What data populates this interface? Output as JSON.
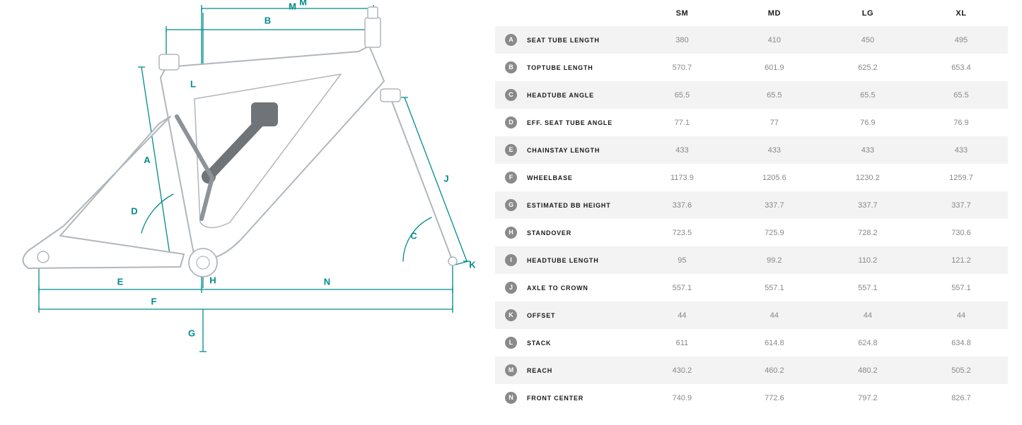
{
  "diagram": {
    "stroke_frame": "#b0b6bb",
    "stroke_dim": "#008b8b",
    "stroke_width_frame": 2,
    "stroke_width_dim": 1.3,
    "labels": [
      "A",
      "B",
      "C",
      "D",
      "E",
      "F",
      "G",
      "H",
      "J",
      "K",
      "L",
      "M",
      "N"
    ],
    "label_color": "#008b8b",
    "label_fontsize": 13
  },
  "table": {
    "sizes": [
      "SM",
      "MD",
      "LG",
      "XL"
    ],
    "rows": [
      {
        "key": "A",
        "label": "SEAT TUBE LENGTH",
        "vals": [
          "380",
          "410",
          "450",
          "495"
        ]
      },
      {
        "key": "B",
        "label": "TOPTUBE LENGTH",
        "vals": [
          "570.7",
          "601.9",
          "625.2",
          "653.4"
        ]
      },
      {
        "key": "C",
        "label": "HEADTUBE ANGLE",
        "vals": [
          "65.5",
          "65.5",
          "65.5",
          "65.5"
        ]
      },
      {
        "key": "D",
        "label": "EFF. SEAT TUBE ANGLE",
        "vals": [
          "77.1",
          "77",
          "76.9",
          "76.9"
        ]
      },
      {
        "key": "E",
        "label": "CHAINSTAY LENGTH",
        "vals": [
          "433",
          "433",
          "433",
          "433"
        ]
      },
      {
        "key": "F",
        "label": "WHEELBASE",
        "vals": [
          "1173.9",
          "1205.6",
          "1230.2",
          "1259.7"
        ]
      },
      {
        "key": "G",
        "label": "ESTIMATED BB HEIGHT",
        "vals": [
          "337.6",
          "337.7",
          "337.7",
          "337.7"
        ]
      },
      {
        "key": "H",
        "label": "STANDOVER",
        "vals": [
          "723.5",
          "725.9",
          "728.2",
          "730.6"
        ]
      },
      {
        "key": "I",
        "label": "HEADTUBE LENGTH",
        "vals": [
          "95",
          "99.2",
          "110.2",
          "121.2"
        ]
      },
      {
        "key": "J",
        "label": "AXLE TO CROWN",
        "vals": [
          "557.1",
          "557.1",
          "557.1",
          "557.1"
        ]
      },
      {
        "key": "K",
        "label": "OFFSET",
        "vals": [
          "44",
          "44",
          "44",
          "44"
        ]
      },
      {
        "key": "L",
        "label": "STACK",
        "vals": [
          "611",
          "614.8",
          "624.8",
          "634.8"
        ]
      },
      {
        "key": "M",
        "label": "REACH",
        "vals": [
          "430.2",
          "460.2",
          "480.2",
          "505.2"
        ]
      },
      {
        "key": "N",
        "label": "FRONT CENTER",
        "vals": [
          "740.9",
          "772.6",
          "797.2",
          "826.7"
        ]
      }
    ],
    "badge_bg": "#8a8a8a",
    "badge_fg": "#ffffff",
    "row_odd_bg": "#f3f3f3",
    "row_even_bg": "#ffffff",
    "header_color": "#1a1a1a",
    "value_color": "#888888"
  }
}
